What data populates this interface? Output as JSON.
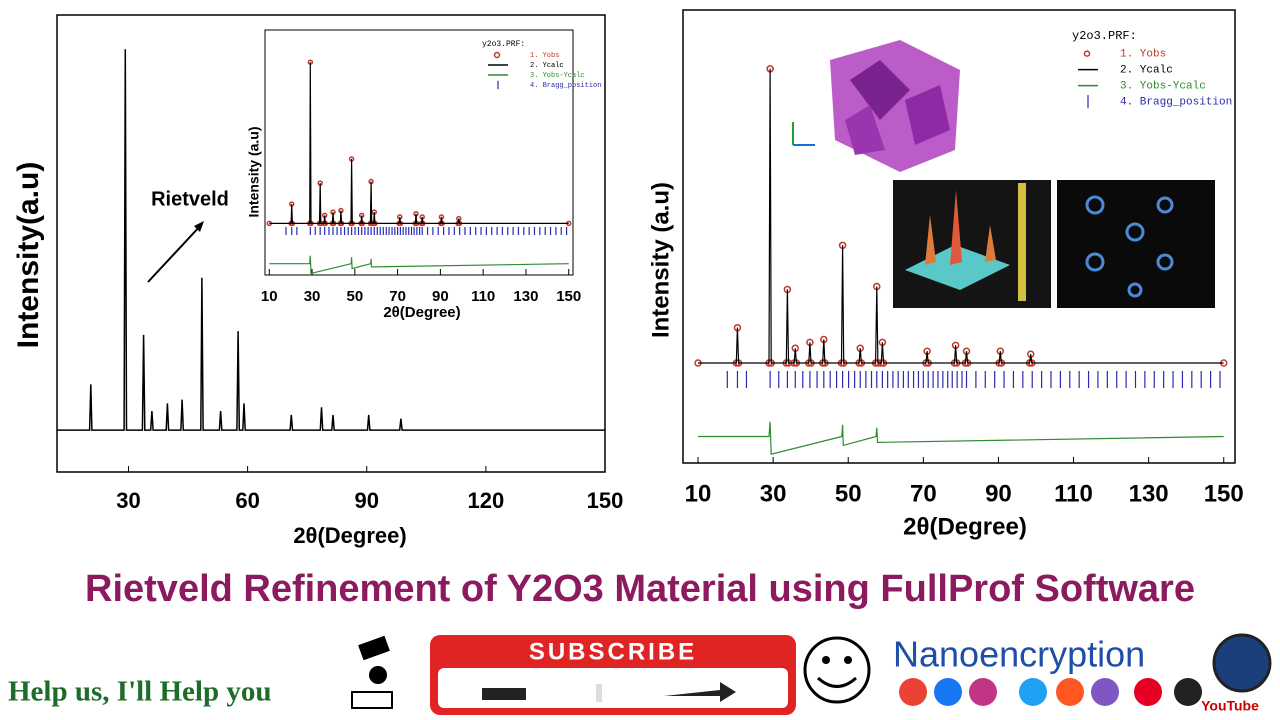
{
  "chart_data": [
    {
      "type": "line",
      "x_label": "2θ(Degree)",
      "y_label": "Intensity(a.u)",
      "annotation": "Rietveld",
      "color": "#000000",
      "x": [
        12,
        20.2,
        20.5,
        20.8,
        28.9,
        29.2,
        29.5,
        33.5,
        33.8,
        34.1,
        35.6,
        35.9,
        36.2,
        39.5,
        39.8,
        40.1,
        43.2,
        43.5,
        43.8,
        48.2,
        48.5,
        48.8,
        52.9,
        53.2,
        53.5,
        57.3,
        57.6,
        57.9,
        58.8,
        59.1,
        59.4,
        70.7,
        71.0,
        71.3,
        78.3,
        78.6,
        78.9,
        81.2,
        81.5,
        81.8,
        90.2,
        90.5,
        90.8,
        98.3,
        98.6,
        98.9,
        150
      ],
      "values": [
        0,
        0,
        12,
        0,
        0,
        100,
        0,
        0,
        25,
        0,
        0,
        5,
        0,
        0,
        7,
        0,
        0,
        8,
        0,
        0,
        40,
        0,
        0,
        5,
        0,
        0,
        26,
        0,
        0,
        7,
        0,
        0,
        4,
        0,
        0,
        6,
        0,
        0,
        4,
        0,
        0,
        4,
        0,
        0,
        3,
        0,
        0
      ],
      "xlim": [
        12,
        150
      ],
      "ylim": [
        -11,
        109
      ],
      "xticks": [
        30,
        60,
        90,
        120,
        150
      ]
    },
    {
      "type": "line",
      "x_label": "2θ(Degree)",
      "y_label": "Intensity (a.u)",
      "legend_title": "y2o3.PRF:",
      "x": [
        10,
        20.2,
        20.5,
        20.8,
        28.9,
        29.2,
        29.5,
        33.5,
        33.8,
        34.1,
        35.6,
        35.9,
        36.2,
        39.5,
        39.8,
        40.1,
        43.2,
        43.5,
        43.8,
        48.2,
        48.5,
        48.8,
        52.9,
        53.2,
        53.5,
        57.3,
        57.6,
        57.9,
        58.8,
        59.1,
        59.4,
        70.7,
        71.0,
        71.3,
        78.3,
        78.6,
        78.9,
        81.2,
        81.5,
        81.8,
        90.2,
        90.5,
        90.8,
        98.3,
        98.6,
        98.9,
        150
      ],
      "series": [
        {
          "name": "1. Yobs",
          "color": "#c0392b",
          "mode": "markers",
          "values": [
            0,
            0,
            12,
            0,
            0,
            100,
            0,
            0,
            25,
            0,
            0,
            5,
            0,
            0,
            7,
            0,
            0,
            8,
            0,
            0,
            40,
            0,
            0,
            5,
            0,
            0,
            26,
            0,
            0,
            7,
            0,
            0,
            4,
            0,
            0,
            6,
            0,
            0,
            4,
            0,
            0,
            4,
            0,
            0,
            3,
            0,
            0
          ]
        },
        {
          "name": "2. Ycalc",
          "color": "#000000",
          "mode": "line",
          "values": [
            0,
            0,
            12,
            0,
            0,
            100,
            0,
            0,
            25,
            0,
            0,
            5,
            0,
            0,
            7,
            0,
            0,
            8,
            0,
            0,
            40,
            0,
            0,
            5,
            0,
            0,
            26,
            0,
            0,
            7,
            0,
            0,
            4,
            0,
            0,
            6,
            0,
            0,
            4,
            0,
            0,
            4,
            0,
            0,
            3,
            0,
            0
          ]
        },
        {
          "name": "3. Yobs-Ycalc",
          "color": "#2e8b2e",
          "mode": "line",
          "x": [
            10,
            28.9,
            29.2,
            29.5,
            48.3,
            48.5,
            48.7,
            57.4,
            57.6,
            57.8,
            150
          ],
          "values": [
            -25,
            -25,
            -20,
            -31,
            -25,
            -21,
            -28,
            -25,
            -22,
            -27,
            -25
          ]
        },
        {
          "name": "4. Bragg_position",
          "color": "#2b2bb0",
          "mode": "ticks",
          "x": [
            17.8,
            20.5,
            22.9,
            29.2,
            31.5,
            33.8,
            35.9,
            37.9,
            39.8,
            41.7,
            43.5,
            45.2,
            46.9,
            48.5,
            50.1,
            51.7,
            53.2,
            54.7,
            56.2,
            57.6,
            59.1,
            60.5,
            61.9,
            63.3,
            64.7,
            66.0,
            67.4,
            68.7,
            70.0,
            71.3,
            72.6,
            73.9,
            75.2,
            76.5,
            77.7,
            79.0,
            80.3,
            81.5,
            84.0,
            86.5,
            89.0,
            91.5,
            94.0,
            96.5,
            99.0,
            101.5,
            104.0,
            106.5,
            109.0,
            111.5,
            114.0,
            116.5,
            119.0,
            121.5,
            124.0,
            126.5,
            129.0,
            131.5,
            134.0,
            136.5,
            139.0,
            141.5,
            144.0,
            146.5,
            149.0
          ]
        }
      ],
      "xlim": [
        8,
        152
      ],
      "ylim": [
        -32,
        120
      ],
      "xticks": [
        10,
        30,
        50,
        70,
        90,
        110,
        130,
        150
      ]
    },
    {
      "type": "line",
      "x_label": "2θ(Degree)",
      "y_label": "Intensity (a.u)",
      "legend_title": "y2o3.PRF:",
      "x": [
        10,
        20.2,
        20.5,
        20.8,
        28.9,
        29.2,
        29.5,
        33.5,
        33.8,
        34.1,
        35.6,
        35.9,
        36.2,
        39.5,
        39.8,
        40.1,
        43.2,
        43.5,
        43.8,
        48.2,
        48.5,
        48.8,
        52.9,
        53.2,
        53.5,
        57.3,
        57.6,
        57.9,
        58.8,
        59.1,
        59.4,
        70.7,
        71.0,
        71.3,
        78.3,
        78.6,
        78.9,
        81.2,
        81.5,
        81.8,
        90.2,
        90.5,
        90.8,
        98.3,
        98.6,
        98.9,
        150
      ],
      "series": [
        {
          "name": "1. Yobs",
          "color": "#c0392b",
          "mode": "markers",
          "values": [
            0,
            0,
            12,
            0,
            0,
            100,
            0,
            0,
            25,
            0,
            0,
            5,
            0,
            0,
            7,
            0,
            0,
            8,
            0,
            0,
            40,
            0,
            0,
            5,
            0,
            0,
            26,
            0,
            0,
            7,
            0,
            0,
            4,
            0,
            0,
            6,
            0,
            0,
            4,
            0,
            0,
            4,
            0,
            0,
            3,
            0,
            0
          ]
        },
        {
          "name": "2. Ycalc",
          "color": "#000000",
          "mode": "line",
          "values": [
            0,
            0,
            12,
            0,
            0,
            100,
            0,
            0,
            25,
            0,
            0,
            5,
            0,
            0,
            7,
            0,
            0,
            8,
            0,
            0,
            40,
            0,
            0,
            5,
            0,
            0,
            26,
            0,
            0,
            7,
            0,
            0,
            4,
            0,
            0,
            6,
            0,
            0,
            4,
            0,
            0,
            4,
            0,
            0,
            3,
            0,
            0
          ]
        },
        {
          "name": "3. Yobs-Ycalc",
          "color": "#2e8b2e",
          "mode": "line",
          "x": [
            10,
            28.9,
            29.2,
            29.5,
            48.3,
            48.5,
            48.7,
            57.4,
            57.6,
            57.8,
            150
          ],
          "values": [
            -25,
            -25,
            -20,
            -31,
            -25,
            -21,
            -28,
            -25,
            -22,
            -27,
            -25
          ]
        },
        {
          "name": "4. Bragg_position",
          "color": "#2b2bb0",
          "mode": "ticks",
          "x": [
            17.8,
            20.5,
            22.9,
            29.2,
            31.5,
            33.8,
            35.9,
            37.9,
            39.8,
            41.7,
            43.5,
            45.2,
            46.9,
            48.5,
            50.1,
            51.7,
            53.2,
            54.7,
            56.2,
            57.6,
            59.1,
            60.5,
            61.9,
            63.3,
            64.7,
            66.0,
            67.4,
            68.7,
            70.0,
            71.3,
            72.6,
            73.9,
            75.2,
            76.5,
            77.7,
            79.0,
            80.3,
            81.5,
            84.0,
            86.5,
            89.0,
            91.5,
            94.0,
            96.5,
            99.0,
            101.5,
            104.0,
            106.5,
            109.0,
            111.5,
            114.0,
            116.5,
            119.0,
            121.5,
            124.0,
            126.5,
            129.0,
            131.5,
            134.0,
            136.5,
            139.0,
            141.5,
            144.0,
            146.5,
            149.0
          ]
        }
      ],
      "xlim": [
        6,
        153
      ],
      "ylim": [
        -34,
        120
      ],
      "xticks": [
        10,
        30,
        50,
        70,
        90,
        110,
        130,
        150
      ]
    }
  ],
  "banner": {
    "title": "Rietveld Refinement of Y2O3 Material using FullProf Software",
    "help": "Help us, I'll Help you",
    "subscribe": "SUBSCRIBE",
    "brand": "Nanoencryption",
    "youtube": "YouTube"
  }
}
